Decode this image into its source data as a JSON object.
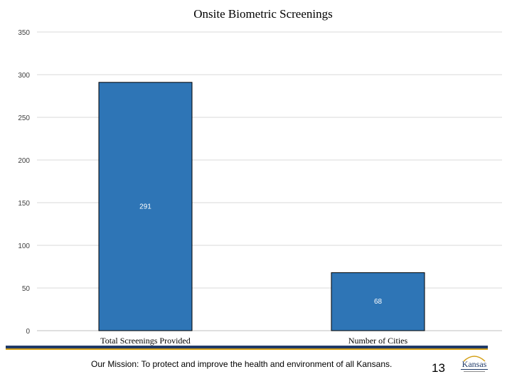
{
  "slide": {
    "mission": "Our Mission: To protect and improve the health and environment of all Kansans.",
    "page_number": "13",
    "logo_text": "Kansas",
    "colors": {
      "band_top": "#1f3a68",
      "band_bottom": "#d4a017"
    }
  },
  "chart_data": {
    "type": "bar",
    "title": "Onsite Biometric Screenings",
    "categories": [
      "Total Screenings Provided",
      "Number of Cities"
    ],
    "values": [
      291,
      68
    ],
    "data_labels": [
      "291",
      "68"
    ],
    "ylim": [
      0,
      350
    ],
    "yticks": [
      0,
      50,
      100,
      150,
      200,
      250,
      300,
      350
    ],
    "xlabel": "",
    "ylabel": "",
    "grid": true,
    "bar_color": "#2e75b6",
    "bar_edge_color": "#000000"
  }
}
